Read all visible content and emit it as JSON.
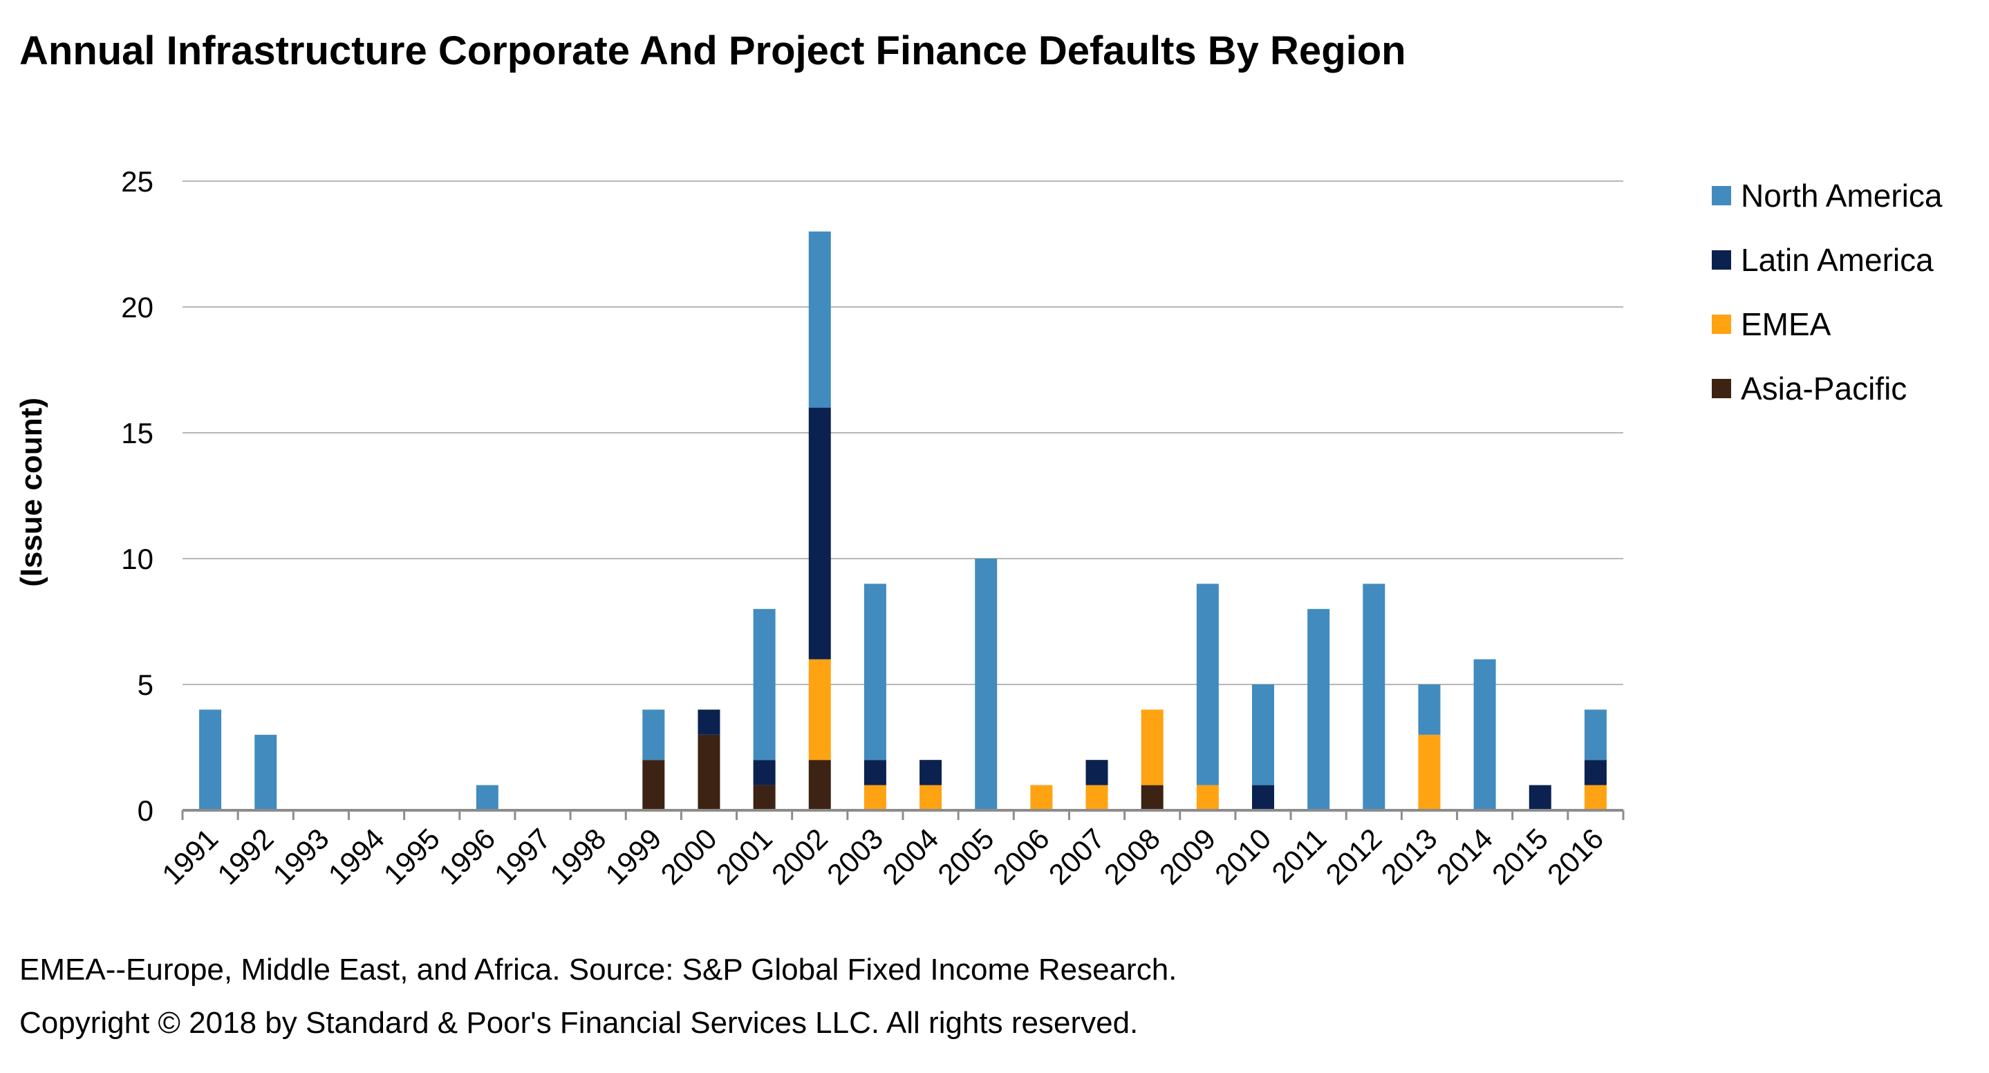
{
  "chart_data": {
    "type": "bar",
    "stacked": true,
    "title": "Annual Infrastructure Corporate And Project Finance Defaults By Region",
    "ylabel": "(Issue count)",
    "xlabel": "",
    "ylim": [
      0,
      25
    ],
    "yticks": [
      0,
      5,
      10,
      15,
      20,
      25
    ],
    "grid": true,
    "legend_position": "right",
    "categories": [
      "1991",
      "1992",
      "1993",
      "1994",
      "1995",
      "1996",
      "1997",
      "1998",
      "1999",
      "2000",
      "2001",
      "2002",
      "2003",
      "2004",
      "2005",
      "2006",
      "2007",
      "2008",
      "2009",
      "2010",
      "2011",
      "2012",
      "2013",
      "2014",
      "2015",
      "2016"
    ],
    "series": [
      {
        "name": "Asia-Pacific",
        "color": "#3d2314",
        "values": [
          0,
          0,
          0,
          0,
          0,
          0,
          0,
          0,
          2,
          3,
          1,
          2,
          0,
          0,
          0,
          0,
          0,
          1,
          0,
          0,
          0,
          0,
          0,
          0,
          0,
          0
        ]
      },
      {
        "name": "EMEA",
        "color": "#ffa312",
        "values": [
          0,
          0,
          0,
          0,
          0,
          0,
          0,
          0,
          0,
          0,
          0,
          4,
          1,
          1,
          0,
          1,
          1,
          3,
          1,
          0,
          0,
          0,
          3,
          0,
          0,
          1
        ]
      },
      {
        "name": "Latin America",
        "color": "#0b2150",
        "values": [
          0,
          0,
          0,
          0,
          0,
          0,
          0,
          0,
          0,
          1,
          1,
          10,
          1,
          1,
          0,
          0,
          1,
          0,
          0,
          1,
          0,
          0,
          0,
          0,
          1,
          1
        ]
      },
      {
        "name": "North America",
        "color": "#418bbf",
        "values": [
          4,
          3,
          0,
          0,
          0,
          1,
          0,
          0,
          2,
          0,
          6,
          7,
          7,
          0,
          10,
          0,
          0,
          0,
          8,
          4,
          8,
          9,
          2,
          6,
          0,
          2
        ]
      }
    ],
    "legend_order": [
      "North America",
      "Latin America",
      "EMEA",
      "Asia-Pacific"
    ]
  },
  "footnotes": {
    "source": "EMEA--Europe, Middle East, and Africa. Source: S&P Global Fixed Income Research.",
    "copyright": "Copyright © 2018 by Standard & Poor's Financial Services LLC. All rights reserved."
  },
  "colors": {
    "gridline": "#b7b7b7",
    "axis": "#8c8c8c"
  }
}
